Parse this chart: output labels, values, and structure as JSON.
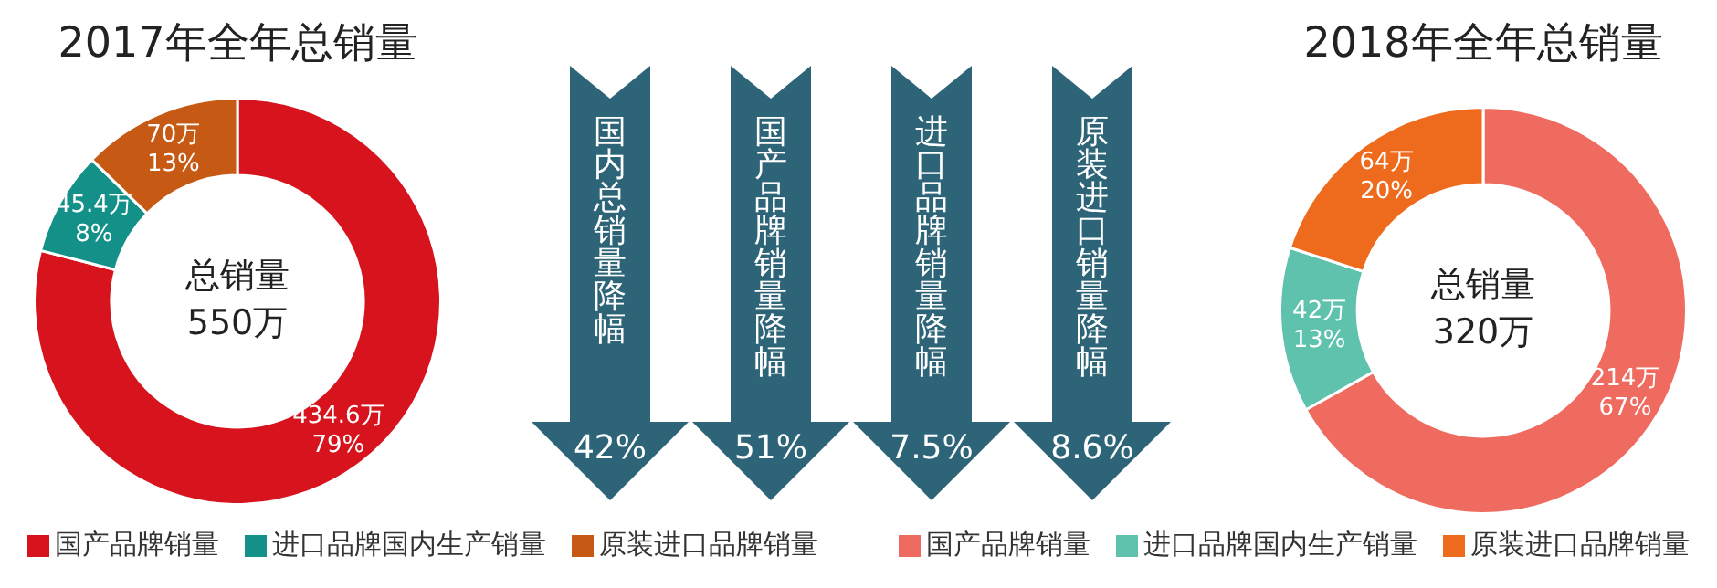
{
  "chart_data": [
    {
      "type": "donut",
      "title": "2017年全年总销量",
      "categories": [
        "国产品牌销量",
        "进口品牌国内生产销量",
        "原装进口品牌销量"
      ],
      "values": [
        434.6,
        45.4,
        70
      ],
      "colors": [
        "#d7141e",
        "#139188",
        "#c65a14"
      ],
      "value_labels": [
        "434.6万\n79%",
        "45.4万\n8%",
        "70万\n13%"
      ],
      "annotations": [
        "总销量\n550万"
      ],
      "legend": "bottom"
    },
    {
      "type": "other",
      "annotations": [
        "国内总销量降幅",
        "42%",
        "国产品牌销量降幅",
        "51%",
        "进口品牌销量降幅",
        "7.5%",
        "原装进口销量降幅",
        "8.6%"
      ]
    },
    {
      "type": "donut",
      "title": "2018年全年总销量",
      "categories": [
        "国产品牌销量",
        "进口品牌国内生产销量",
        "原装进口品牌销量"
      ],
      "values": [
        214,
        42,
        64
      ],
      "colors": [
        "#ef6a5f",
        "#5fc2ad",
        "#ee6b1e"
      ],
      "value_labels": [
        "214万\n67%",
        "42万\n13%",
        "64万\n20%"
      ],
      "annotations": [
        "总销量\n320万"
      ],
      "legend": "bottom"
    }
  ]
}
